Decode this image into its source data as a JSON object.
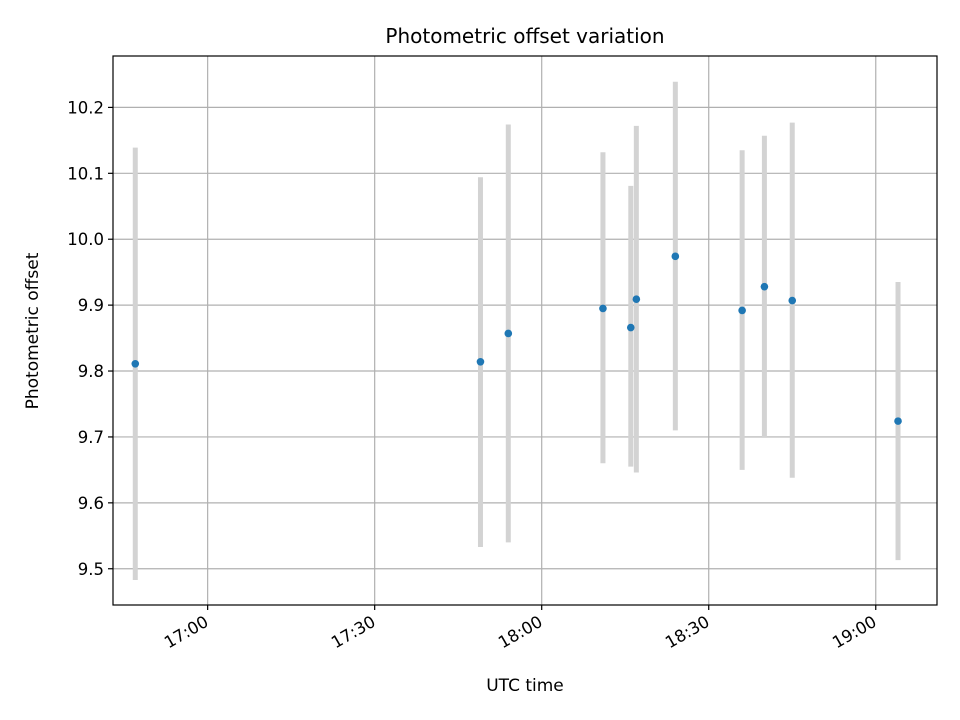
{
  "chart_data": {
    "type": "scatter",
    "title": "Photometric offset variation",
    "xlabel": "UTC time",
    "ylabel": "Photometric offset",
    "x_tick_labels": [
      "17:00",
      "17:30",
      "18:00",
      "18:30",
      "19:00"
    ],
    "y_tick_labels": [
      "9.5",
      "9.6",
      "9.7",
      "9.8",
      "9.9",
      "10.0",
      "10.1",
      "10.2"
    ],
    "xlim": [
      "16:43",
      "19:11"
    ],
    "ylim": [
      9.445,
      10.278
    ],
    "grid": true,
    "series": [
      {
        "x": [
          "16:47",
          "17:49",
          "17:54",
          "18:11",
          "18:16",
          "18:17",
          "18:24",
          "18:36",
          "18:40",
          "18:45",
          "19:04"
        ],
        "y": [
          9.811,
          9.814,
          9.857,
          9.895,
          9.866,
          9.909,
          9.974,
          9.892,
          9.928,
          9.907,
          9.724
        ],
        "yerr_low": [
          9.483,
          9.533,
          9.54,
          9.66,
          9.655,
          9.646,
          9.71,
          9.65,
          9.7,
          9.638,
          9.513
        ],
        "yerr_high": [
          10.139,
          10.094,
          10.174,
          10.132,
          10.081,
          10.172,
          10.239,
          10.135,
          10.157,
          10.177,
          9.935
        ]
      }
    ],
    "colors": {
      "points": "#1f77b4",
      "error_bars": "#d3d3d3",
      "grid": "#b0b0b0"
    }
  }
}
